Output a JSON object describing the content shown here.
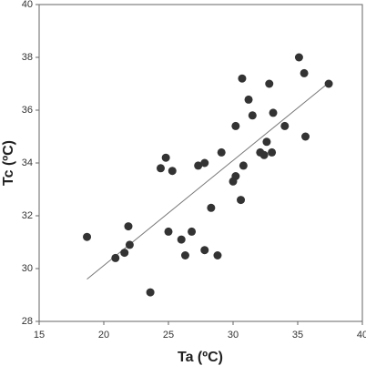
{
  "chart_data": {
    "type": "scatter",
    "x_label": "Ta (ºC)",
    "y_label": "Tc (ºC)",
    "xlim": [
      15,
      40
    ],
    "xticks": [
      15,
      20,
      25,
      30,
      35,
      40
    ],
    "ylim": [
      28,
      40
    ],
    "yticks": [
      28,
      30,
      32,
      34,
      36,
      38,
      40
    ],
    "color": "#333333",
    "x": [
      18.7,
      20.9,
      21.6,
      21.9,
      22.0,
      23.6,
      24.4,
      24.8,
      25.3,
      25.0,
      26.0,
      26.3,
      26.8,
      27.3,
      27.8,
      27.8,
      28.3,
      28.8,
      29.1,
      30.0,
      30.2,
      30.2,
      30.7,
      30.6,
      30.8,
      31.2,
      31.5,
      32.1,
      32.4,
      32.6,
      32.8,
      33.0,
      33.1,
      34.0,
      35.1,
      35.5,
      35.6,
      37.4
    ],
    "values": [
      31.2,
      30.4,
      30.6,
      31.6,
      30.9,
      29.1,
      33.8,
      34.2,
      33.7,
      31.4,
      31.1,
      30.5,
      31.4,
      33.9,
      34.0,
      30.7,
      32.3,
      30.5,
      34.4,
      33.3,
      33.5,
      35.4,
      37.2,
      32.6,
      33.9,
      36.4,
      35.8,
      34.4,
      34.3,
      34.8,
      37.0,
      34.4,
      35.9,
      35.4,
      38.0,
      37.4,
      35.0,
      37.0
    ],
    "trend_line": {
      "x": [
        18.7,
        37.3
      ],
      "y": [
        29.6,
        37.0
      ]
    }
  }
}
